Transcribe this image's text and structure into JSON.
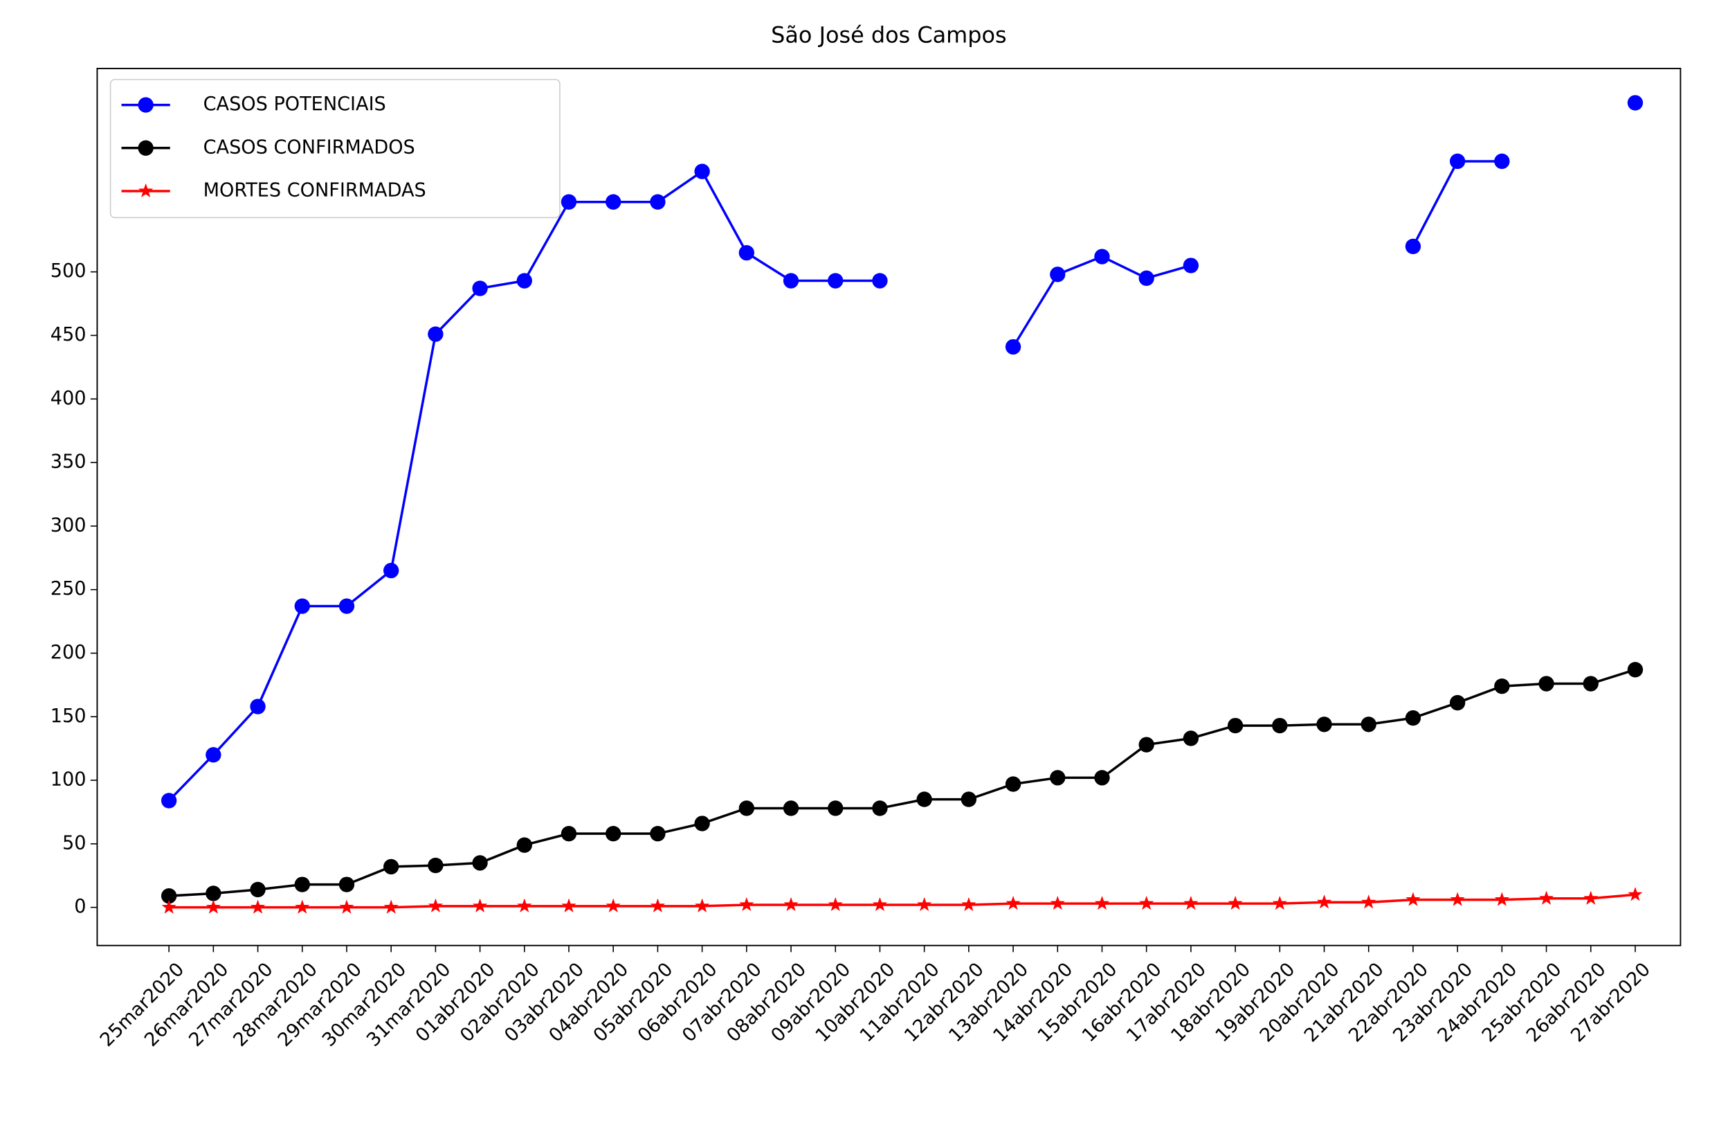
{
  "chart_data": {
    "type": "line",
    "title": "São José dos Campos",
    "categories": [
      "25mar2020",
      "26mar2020",
      "27mar2020",
      "28mar2020",
      "29mar2020",
      "30mar2020",
      "31mar2020",
      "01abr2020",
      "02abr2020",
      "03abr2020",
      "04abr2020",
      "05abr2020",
      "06abr2020",
      "07abr2020",
      "08abr2020",
      "09abr2020",
      "10abr2020",
      "11abr2020",
      "12abr2020",
      "13abr2020",
      "14abr2020",
      "15abr2020",
      "16abr2020",
      "17abr2020",
      "18abr2020",
      "19abr2020",
      "20abr2020",
      "21abr2020",
      "22abr2020",
      "23abr2020",
      "24abr2020",
      "25abr2020",
      "26abr2020",
      "27abr2020"
    ],
    "series": [
      {
        "name": "CASOS POTENCIAIS",
        "color": "#0000ff",
        "marker": "o",
        "values": [
          84,
          120,
          158,
          237,
          237,
          265,
          451,
          487,
          493,
          555,
          555,
          555,
          579,
          515,
          493,
          493,
          493,
          null,
          null,
          441,
          498,
          512,
          495,
          505,
          null,
          null,
          null,
          null,
          520,
          587,
          587,
          null,
          null,
          633
        ]
      },
      {
        "name": "CASOS CONFIRMADOS",
        "color": "#000000",
        "marker": "o",
        "values": [
          9,
          11,
          14,
          18,
          18,
          32,
          33,
          35,
          49,
          58,
          58,
          58,
          66,
          78,
          78,
          78,
          78,
          85,
          85,
          97,
          102,
          102,
          128,
          133,
          143,
          143,
          144,
          144,
          149,
          161,
          174,
          176,
          176,
          187
        ]
      },
      {
        "name": "MORTES CONFIRMADAS",
        "color": "#ff0000",
        "marker": "*",
        "values": [
          0,
          0,
          0,
          0,
          0,
          0,
          1,
          1,
          1,
          1,
          1,
          1,
          1,
          2,
          2,
          2,
          2,
          2,
          2,
          3,
          3,
          3,
          3,
          3,
          3,
          3,
          4,
          4,
          6,
          6,
          6,
          7,
          7,
          10
        ]
      }
    ],
    "ylim": [
      -30,
      660
    ],
    "yticks": [
      0,
      50,
      100,
      150,
      200,
      250,
      300,
      350,
      400,
      450,
      500
    ],
    "legend": "upper left",
    "grid": false
  }
}
